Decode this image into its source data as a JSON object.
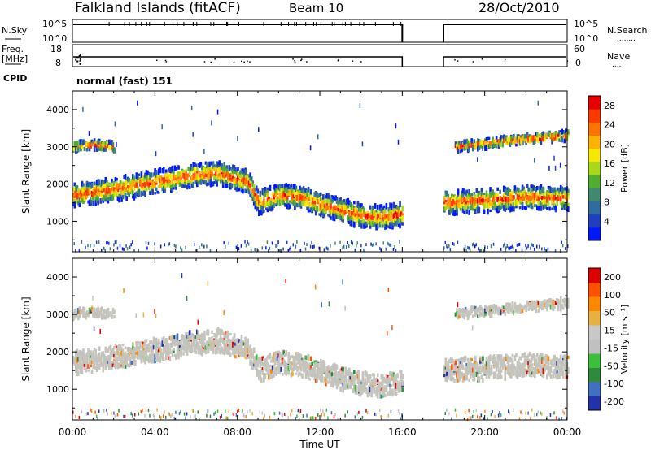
{
  "header": {
    "station": "Falkland Islands (fitACF)",
    "beam": "Beam 10",
    "date": "28/Oct/2010"
  },
  "side_labels": {
    "nsky": "N.Sky",
    "nsearch": "N.Search",
    "freq_line1": "Freq.",
    "freq_line2": "[MHz]",
    "nave": "Nave",
    "cpid": "CPID",
    "cpid_value": "normal (fast) 151"
  },
  "chart_data": [
    {
      "type": "line",
      "panel": "noise",
      "left_axis": {
        "label": "N.Sky",
        "ticks": [
          "10^5",
          "10^0"
        ]
      },
      "right_axis": {
        "label": "N.Search",
        "ticks": [
          "10^5",
          "10^0"
        ]
      },
      "x": [
        0,
        16,
        18,
        24
      ],
      "series": [
        {
          "values": [
            100000,
            100000,
            null,
            100000
          ]
        }
      ],
      "gap": [
        16,
        18
      ]
    },
    {
      "type": "line",
      "panel": "frequency",
      "left_axis": {
        "label": "Freq. [MHz]",
        "ticks": [
          "18",
          "8"
        ]
      },
      "right_axis": {
        "label": "Nave",
        "ticks": [
          "60",
          "0"
        ]
      },
      "x": [
        0,
        16,
        18,
        24
      ],
      "series": [
        {
          "values": [
            11,
            11,
            null,
            11
          ]
        }
      ],
      "gap": [
        16,
        18
      ]
    },
    {
      "type": "heatmap",
      "panel": "power",
      "ylabel": "Slant Range [km]",
      "yticks": [
        1000,
        2000,
        3000,
        4000
      ],
      "ylim": [
        180,
        4500
      ],
      "xlim": [
        0,
        24
      ],
      "gap": [
        16,
        18
      ],
      "colorbar": {
        "label": "Power [dB]",
        "ticks": [
          4,
          8,
          12,
          16,
          20,
          24,
          28
        ],
        "range": [
          0,
          30
        ]
      },
      "echo_bands": [
        {
          "t": [
            0,
            2,
            4,
            6,
            7,
            8.5,
            9,
            10,
            11,
            12,
            13,
            14,
            15,
            16,
            18,
            20,
            22,
            24
          ],
          "center_km": [
            1700,
            1850,
            2050,
            2250,
            2300,
            2050,
            1500,
            1700,
            1650,
            1450,
            1300,
            1150,
            1100,
            1200,
            1500,
            1550,
            1650,
            1600
          ],
          "label": "main band"
        },
        {
          "t": [
            0,
            1,
            2
          ],
          "center_km": [
            3000,
            3050,
            3000
          ],
          "label": "far band early"
        },
        {
          "t": [
            18.5,
            21,
            24
          ],
          "center_km": [
            3000,
            3150,
            3300
          ],
          "label": "far band late"
        }
      ]
    },
    {
      "type": "heatmap",
      "panel": "velocity",
      "ylabel": "Slant Range [km]",
      "yticks": [
        1000,
        2000,
        3000,
        4000
      ],
      "ylim": [
        180,
        4500
      ],
      "xlim": [
        0,
        24
      ],
      "gap": [
        16,
        18
      ],
      "xticks": [
        "00:00",
        "04:00",
        "08:00",
        "12:00",
        "16:00",
        "20:00",
        "00:00"
      ],
      "xlabel": "Time UT",
      "colorbar": {
        "label": "Velocity [m s⁻¹]",
        "ticks": [
          200,
          100,
          50,
          15,
          -15,
          -50,
          -100,
          -200
        ]
      }
    }
  ],
  "colors": {
    "power_scale": [
      "#0018ff",
      "#1f3fc0",
      "#2e6d9e",
      "#3f8a6e",
      "#4fae2f",
      "#a8d81a",
      "#f8e800",
      "#ffb300",
      "#ff7400",
      "#ff3800",
      "#e80000"
    ],
    "velocity_scale": [
      "#2233aa",
      "#4070c0",
      "#2e8b3c",
      "#3cbf3a",
      "#c0c0c0",
      "#c8c8c8",
      "#e8b040",
      "#ff8800",
      "#ff5000",
      "#e00000"
    ],
    "ground_scatter": "#c4c4bc"
  }
}
